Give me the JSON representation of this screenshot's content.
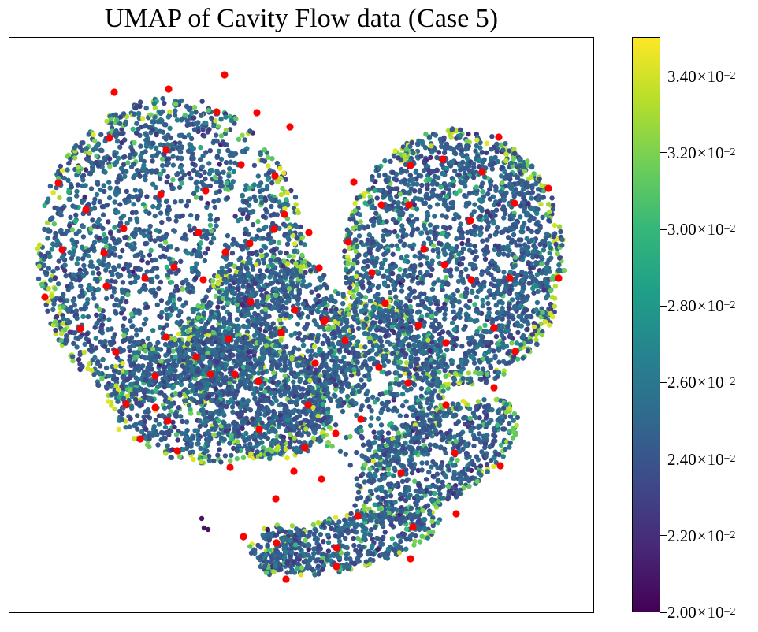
{
  "chart_data": {
    "type": "scatter",
    "title": "UMAP of Cavity Flow data (Case 5)",
    "xlabel": "",
    "ylabel": "",
    "axes": {
      "ticks_visible": false,
      "grid": false
    },
    "colormap": "viridis",
    "colorbar": {
      "range": [
        0.02,
        0.035
      ],
      "ticks": [
        {
          "value": 0.02,
          "mantissa": "2.00",
          "base": "10",
          "exponent": "−2"
        },
        {
          "value": 0.022,
          "mantissa": "2.20",
          "base": "10",
          "exponent": "−2"
        },
        {
          "value": 0.024,
          "mantissa": "2.40",
          "base": "10",
          "exponent": "−2"
        },
        {
          "value": 0.026,
          "mantissa": "2.60",
          "base": "10",
          "exponent": "−2"
        },
        {
          "value": 0.028,
          "mantissa": "2.80",
          "base": "10",
          "exponent": "−2"
        },
        {
          "value": 0.03,
          "mantissa": "3.00",
          "base": "10",
          "exponent": "−2"
        },
        {
          "value": 0.032,
          "mantissa": "3.20",
          "base": "10",
          "exponent": "−2"
        },
        {
          "value": 0.034,
          "mantissa": "3.40",
          "base": "10",
          "exponent": "−2"
        }
      ]
    },
    "series": [
      {
        "role": "embedding points (colored by value)",
        "point_count_approx": 9000,
        "value_distribution": "mostly 0.024–0.029, with yellow-green (0.031–0.035) fringes along cluster edges"
      },
      {
        "role": "highlighted samples",
        "color": "#ff0000",
        "point_count": 96
      }
    ]
  },
  "colors": {
    "highlight": "#ff0000",
    "viridis_low": "#440154",
    "viridis_mid": "#21918c",
    "viridis_high": "#fde725"
  }
}
